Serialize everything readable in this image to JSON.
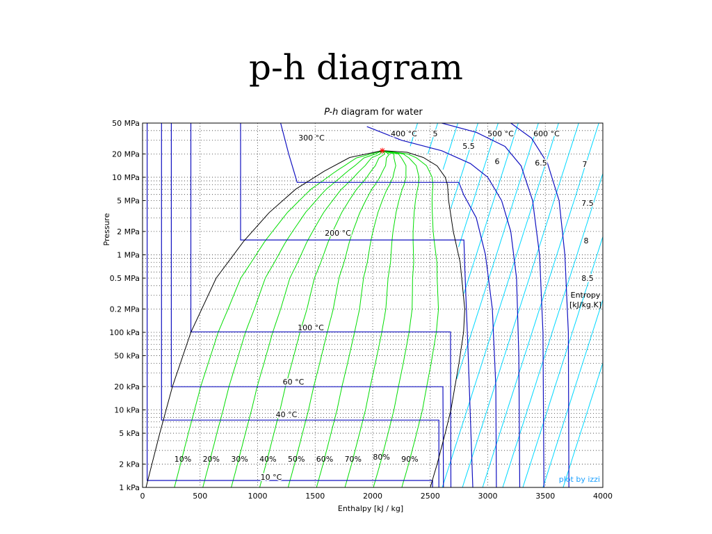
{
  "slide": {
    "title": "p-h diagram"
  },
  "chart_data": {
    "type": "line",
    "title_italic": "P-h",
    "title_rest": " diagram for water",
    "xlabel": "Enthalpy [kJ / kg]",
    "ylabel": "Pressure",
    "xlim": [
      0,
      4000
    ],
    "ylim_kpa": [
      1,
      50000
    ],
    "y_scale": "log",
    "grid": true,
    "x_ticks": [
      "0",
      "500",
      "1000",
      "1500",
      "2000",
      "2500",
      "3000",
      "3500",
      "4000"
    ],
    "y_ticks": [
      {
        "kpa": 1,
        "label": "1 kPa"
      },
      {
        "kpa": 2,
        "label": "2 kPa"
      },
      {
        "kpa": 5,
        "label": "5 kPa"
      },
      {
        "kpa": 10,
        "label": "10 kPa"
      },
      {
        "kpa": 20,
        "label": "20 kPa"
      },
      {
        "kpa": 50,
        "label": "50 kPa"
      },
      {
        "kpa": 100,
        "label": "100 kPa"
      },
      {
        "kpa": 200,
        "label": "0.2 MPa"
      },
      {
        "kpa": 500,
        "label": "0.5 MPa"
      },
      {
        "kpa": 1000,
        "label": "1 MPa"
      },
      {
        "kpa": 2000,
        "label": "2 MPa"
      },
      {
        "kpa": 5000,
        "label": "5 MPa"
      },
      {
        "kpa": 10000,
        "label": "10 MPa"
      },
      {
        "kpa": 20000,
        "label": "20 MPa"
      },
      {
        "kpa": 50000,
        "label": "50 MPa"
      }
    ],
    "saturation_dome": {
      "h": [
        30,
        150,
        260,
        420,
        640,
        880,
        1100,
        1330,
        1580,
        1800,
        2084,
        2300,
        2440,
        2560,
        2630,
        2650,
        2660,
        2700,
        2760,
        2800,
        2790,
        2750,
        2680,
        2630,
        2560,
        2500
      ],
      "p": [
        1,
        5,
        20,
        100,
        500,
        1500,
        3500,
        7000,
        12000,
        18000,
        22064,
        21000,
        18000,
        14000,
        10000,
        8000,
        5000,
        2000,
        800,
        200,
        100,
        40,
        10,
        5,
        2,
        1
      ]
    },
    "critical_point": {
      "h": 2084,
      "p": 22064
    },
    "isotherms": [
      {
        "label": "10 °C",
        "h": [
          40,
          40,
          2520,
          2520,
          2520
        ],
        "p": [
          50000,
          1.23,
          1.23,
          1,
          1
        ]
      },
      {
        "label": "40 °C",
        "h": [
          165,
          165,
          2575,
          2575
        ],
        "p": [
          50000,
          7.38,
          7.38,
          1
        ]
      },
      {
        "label": "60 °C",
        "h": [
          250,
          250,
          2610,
          2615
        ],
        "p": [
          50000,
          19.9,
          19.9,
          1
        ]
      },
      {
        "label": "100 °C",
        "h": [
          420,
          420,
          2676,
          2680
        ],
        "p": [
          50000,
          101.3,
          101.3,
          1
        ]
      },
      {
        "label": "200 °C",
        "h": [
          852,
          852,
          2793,
          2800,
          2830,
          2870
        ],
        "p": [
          50000,
          1554,
          1554,
          700,
          50,
          1
        ]
      },
      {
        "label": "300 °C",
        "h": [
          1200,
          1270,
          1344,
          1344,
          2749,
          2790,
          2900,
          2980,
          3040,
          3070,
          3075
        ],
        "p": [
          50000,
          20000,
          8588,
          8588,
          8588,
          6000,
          3000,
          1000,
          200,
          20,
          1
        ]
      },
      {
        "label": "400 °C",
        "h": [
          1950,
          2250,
          2600,
          2850,
          3000,
          3120,
          3200,
          3250,
          3270,
          3278
        ],
        "p": [
          45000,
          30000,
          22000,
          15000,
          10000,
          5000,
          2000,
          500,
          50,
          1
        ]
      },
      {
        "label": "500 °C",
        "h": [
          2600,
          2900,
          3150,
          3290,
          3390,
          3450,
          3480,
          3488
        ],
        "p": [
          50000,
          38000,
          25000,
          14000,
          5000,
          1000,
          100,
          1
        ]
      },
      {
        "label": "600 °C",
        "h": [
          3200,
          3380,
          3520,
          3620,
          3670,
          3700,
          3705
        ],
        "p": [
          50000,
          32000,
          15000,
          5000,
          1000,
          100,
          1
        ]
      }
    ],
    "quality_labels": [
      "10%",
      "20%",
      "30%",
      "40%",
      "50%",
      "60%",
      "70%",
      "80%",
      "90%"
    ],
    "entropy_labels": [
      "5",
      "5.5",
      "6",
      "6.5",
      "7",
      "7.5",
      "8",
      "8.5"
    ],
    "entropy_legend": [
      "Entropy",
      "[kJ/kg.K]"
    ],
    "credit": "plot by izzi",
    "colors": {
      "dome": "#000000",
      "isotherm": "#1010c0",
      "quality": "#00dd00",
      "entropy": "#00d8ff",
      "critical": "#ff0000",
      "credit": "#1aa0ff"
    }
  }
}
